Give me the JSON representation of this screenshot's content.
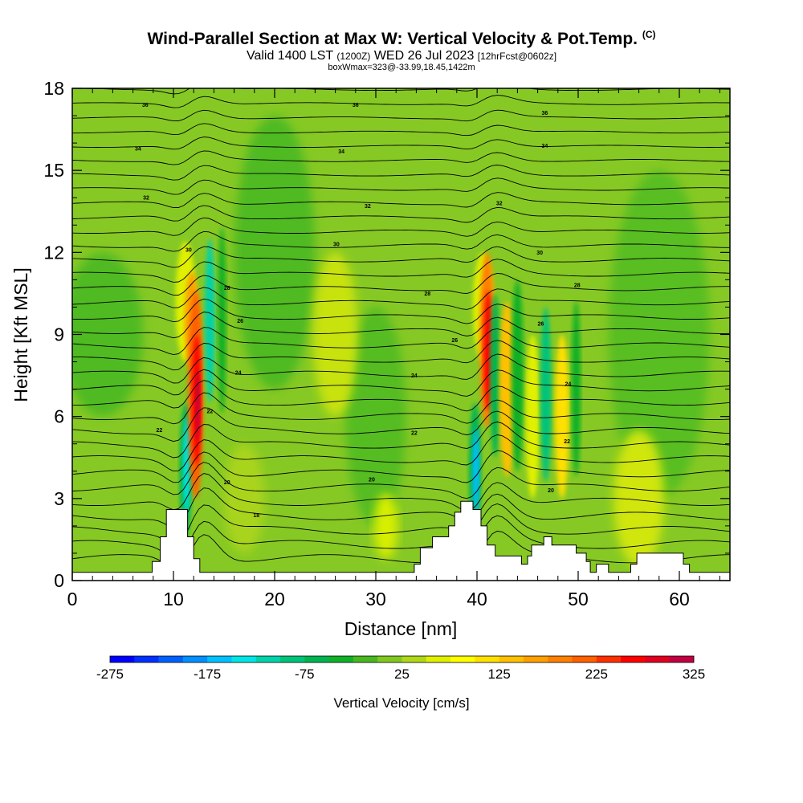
{
  "title": {
    "main": "Wind-Parallel Section at Max W: Vertical Velocity & Pot.Temp.",
    "copyright": "(C)",
    "valid_prefix": "Valid 1400 LST",
    "valid_zulu": "(1200Z)",
    "valid_date": "WED 26 Jul 2023",
    "forecast": "[12hrFcst@0602z]",
    "box_info": "boxWmax=323@-33.99,18.45,1422m"
  },
  "chart_data": {
    "type": "heatmap",
    "title": "Wind-Parallel Section at Max W: Vertical Velocity & Pot.Temp.",
    "xlabel": "Distance [nm]",
    "ylabel": "Height [Kft MSL]",
    "xlim": [
      0,
      65
    ],
    "ylim": [
      0,
      18
    ],
    "x_ticks": [
      0,
      10,
      20,
      30,
      40,
      50,
      60
    ],
    "y_ticks": [
      0,
      3,
      6,
      9,
      12,
      15,
      18
    ],
    "colorbar": {
      "label": "Vertical Velocity [cm/s]",
      "min": -275,
      "max": 325,
      "tick_values": [
        -275,
        -175,
        -75,
        25,
        125,
        225,
        325
      ],
      "tick_labels": [
        "-275",
        "-175",
        "-75",
        "25",
        "125",
        "225",
        "325"
      ],
      "colors": [
        "#0000ff",
        "#0030ff",
        "#0060ff",
        "#0090ff",
        "#00c0ff",
        "#00e6e6",
        "#00d2aa",
        "#00c37a",
        "#00b450",
        "#10b028",
        "#48b820",
        "#80c820",
        "#b0d818",
        "#e0f000",
        "#ffff00",
        "#ffe000",
        "#ffc000",
        "#ffa000",
        "#ff8000",
        "#ff6000",
        "#ff3000",
        "#ff0000",
        "#e00020",
        "#c00040"
      ]
    },
    "theta_contour_labels": [
      {
        "text": "36",
        "x": 7.2,
        "y": 17.4
      },
      {
        "text": "36",
        "x": 28.0,
        "y": 17.4
      },
      {
        "text": "36",
        "x": 46.7,
        "y": 17.1
      },
      {
        "text": "34",
        "x": 6.5,
        "y": 15.8
      },
      {
        "text": "34",
        "x": 26.6,
        "y": 15.7
      },
      {
        "text": "34",
        "x": 46.7,
        "y": 15.9
      },
      {
        "text": "32",
        "x": 7.3,
        "y": 14.0
      },
      {
        "text": "32",
        "x": 29.2,
        "y": 13.7
      },
      {
        "text": "32",
        "x": 42.2,
        "y": 13.8
      },
      {
        "text": "30",
        "x": 11.5,
        "y": 12.1
      },
      {
        "text": "30",
        "x": 26.1,
        "y": 12.3
      },
      {
        "text": "30",
        "x": 46.2,
        "y": 12.0
      },
      {
        "text": "28",
        "x": 15.3,
        "y": 10.7
      },
      {
        "text": "28",
        "x": 35.1,
        "y": 10.5
      },
      {
        "text": "28",
        "x": 49.9,
        "y": 10.8
      },
      {
        "text": "26",
        "x": 16.6,
        "y": 9.5
      },
      {
        "text": "26",
        "x": 37.8,
        "y": 8.8
      },
      {
        "text": "26",
        "x": 46.3,
        "y": 9.4
      },
      {
        "text": "24",
        "x": 16.4,
        "y": 7.6
      },
      {
        "text": "24",
        "x": 33.8,
        "y": 7.5
      },
      {
        "text": "24",
        "x": 49.0,
        "y": 7.2
      },
      {
        "text": "22",
        "x": 8.6,
        "y": 5.5
      },
      {
        "text": "22",
        "x": 13.6,
        "y": 6.2
      },
      {
        "text": "22",
        "x": 33.8,
        "y": 5.4
      },
      {
        "text": "22",
        "x": 48.9,
        "y": 5.1
      },
      {
        "text": "20",
        "x": 15.3,
        "y": 3.6
      },
      {
        "text": "20",
        "x": 29.6,
        "y": 3.7
      },
      {
        "text": "20",
        "x": 47.3,
        "y": 3.3
      },
      {
        "text": "18",
        "x": 18.2,
        "y": 2.4
      }
    ],
    "terrain": [
      [
        0,
        0.3
      ],
      [
        7.9,
        0.3
      ],
      [
        7.9,
        0.7
      ],
      [
        8.7,
        0.7
      ],
      [
        8.7,
        1.6
      ],
      [
        9.3,
        1.6
      ],
      [
        9.3,
        2.6
      ],
      [
        11.4,
        2.6
      ],
      [
        11.4,
        1.6
      ],
      [
        12.0,
        1.6
      ],
      [
        12.0,
        0.8
      ],
      [
        12.6,
        0.8
      ],
      [
        12.6,
        0.3
      ],
      [
        33.8,
        0.3
      ],
      [
        33.8,
        0.6
      ],
      [
        34.4,
        0.6
      ],
      [
        34.4,
        1.2
      ],
      [
        35.6,
        1.2
      ],
      [
        35.6,
        1.6
      ],
      [
        37.2,
        1.6
      ],
      [
        37.2,
        2.0
      ],
      [
        37.8,
        2.0
      ],
      [
        37.8,
        2.5
      ],
      [
        38.4,
        2.5
      ],
      [
        38.4,
        2.9
      ],
      [
        39.6,
        2.9
      ],
      [
        39.6,
        2.6
      ],
      [
        40.4,
        2.6
      ],
      [
        40.4,
        2.0
      ],
      [
        41.0,
        2.0
      ],
      [
        41.0,
        1.3
      ],
      [
        41.8,
        1.3
      ],
      [
        41.8,
        0.9
      ],
      [
        44.4,
        0.9
      ],
      [
        44.4,
        0.6
      ],
      [
        45.0,
        0.6
      ],
      [
        45.0,
        0.9
      ],
      [
        45.4,
        0.9
      ],
      [
        45.4,
        1.3
      ],
      [
        46.6,
        1.3
      ],
      [
        46.6,
        1.6
      ],
      [
        47.4,
        1.6
      ],
      [
        47.4,
        1.3
      ],
      [
        49.8,
        1.3
      ],
      [
        49.8,
        1.0
      ],
      [
        50.8,
        1.0
      ],
      [
        50.8,
        0.7
      ],
      [
        51.2,
        0.7
      ],
      [
        51.2,
        0.3
      ],
      [
        51.8,
        0.3
      ],
      [
        51.8,
        0.6
      ],
      [
        53.0,
        0.6
      ],
      [
        53.0,
        0.3
      ],
      [
        55.2,
        0.3
      ],
      [
        55.2,
        0.6
      ],
      [
        55.8,
        0.6
      ],
      [
        55.8,
        1.0
      ],
      [
        60.4,
        1.0
      ],
      [
        60.4,
        0.6
      ],
      [
        61.0,
        0.6
      ],
      [
        61.0,
        0.3
      ],
      [
        65,
        0.3
      ]
    ]
  }
}
